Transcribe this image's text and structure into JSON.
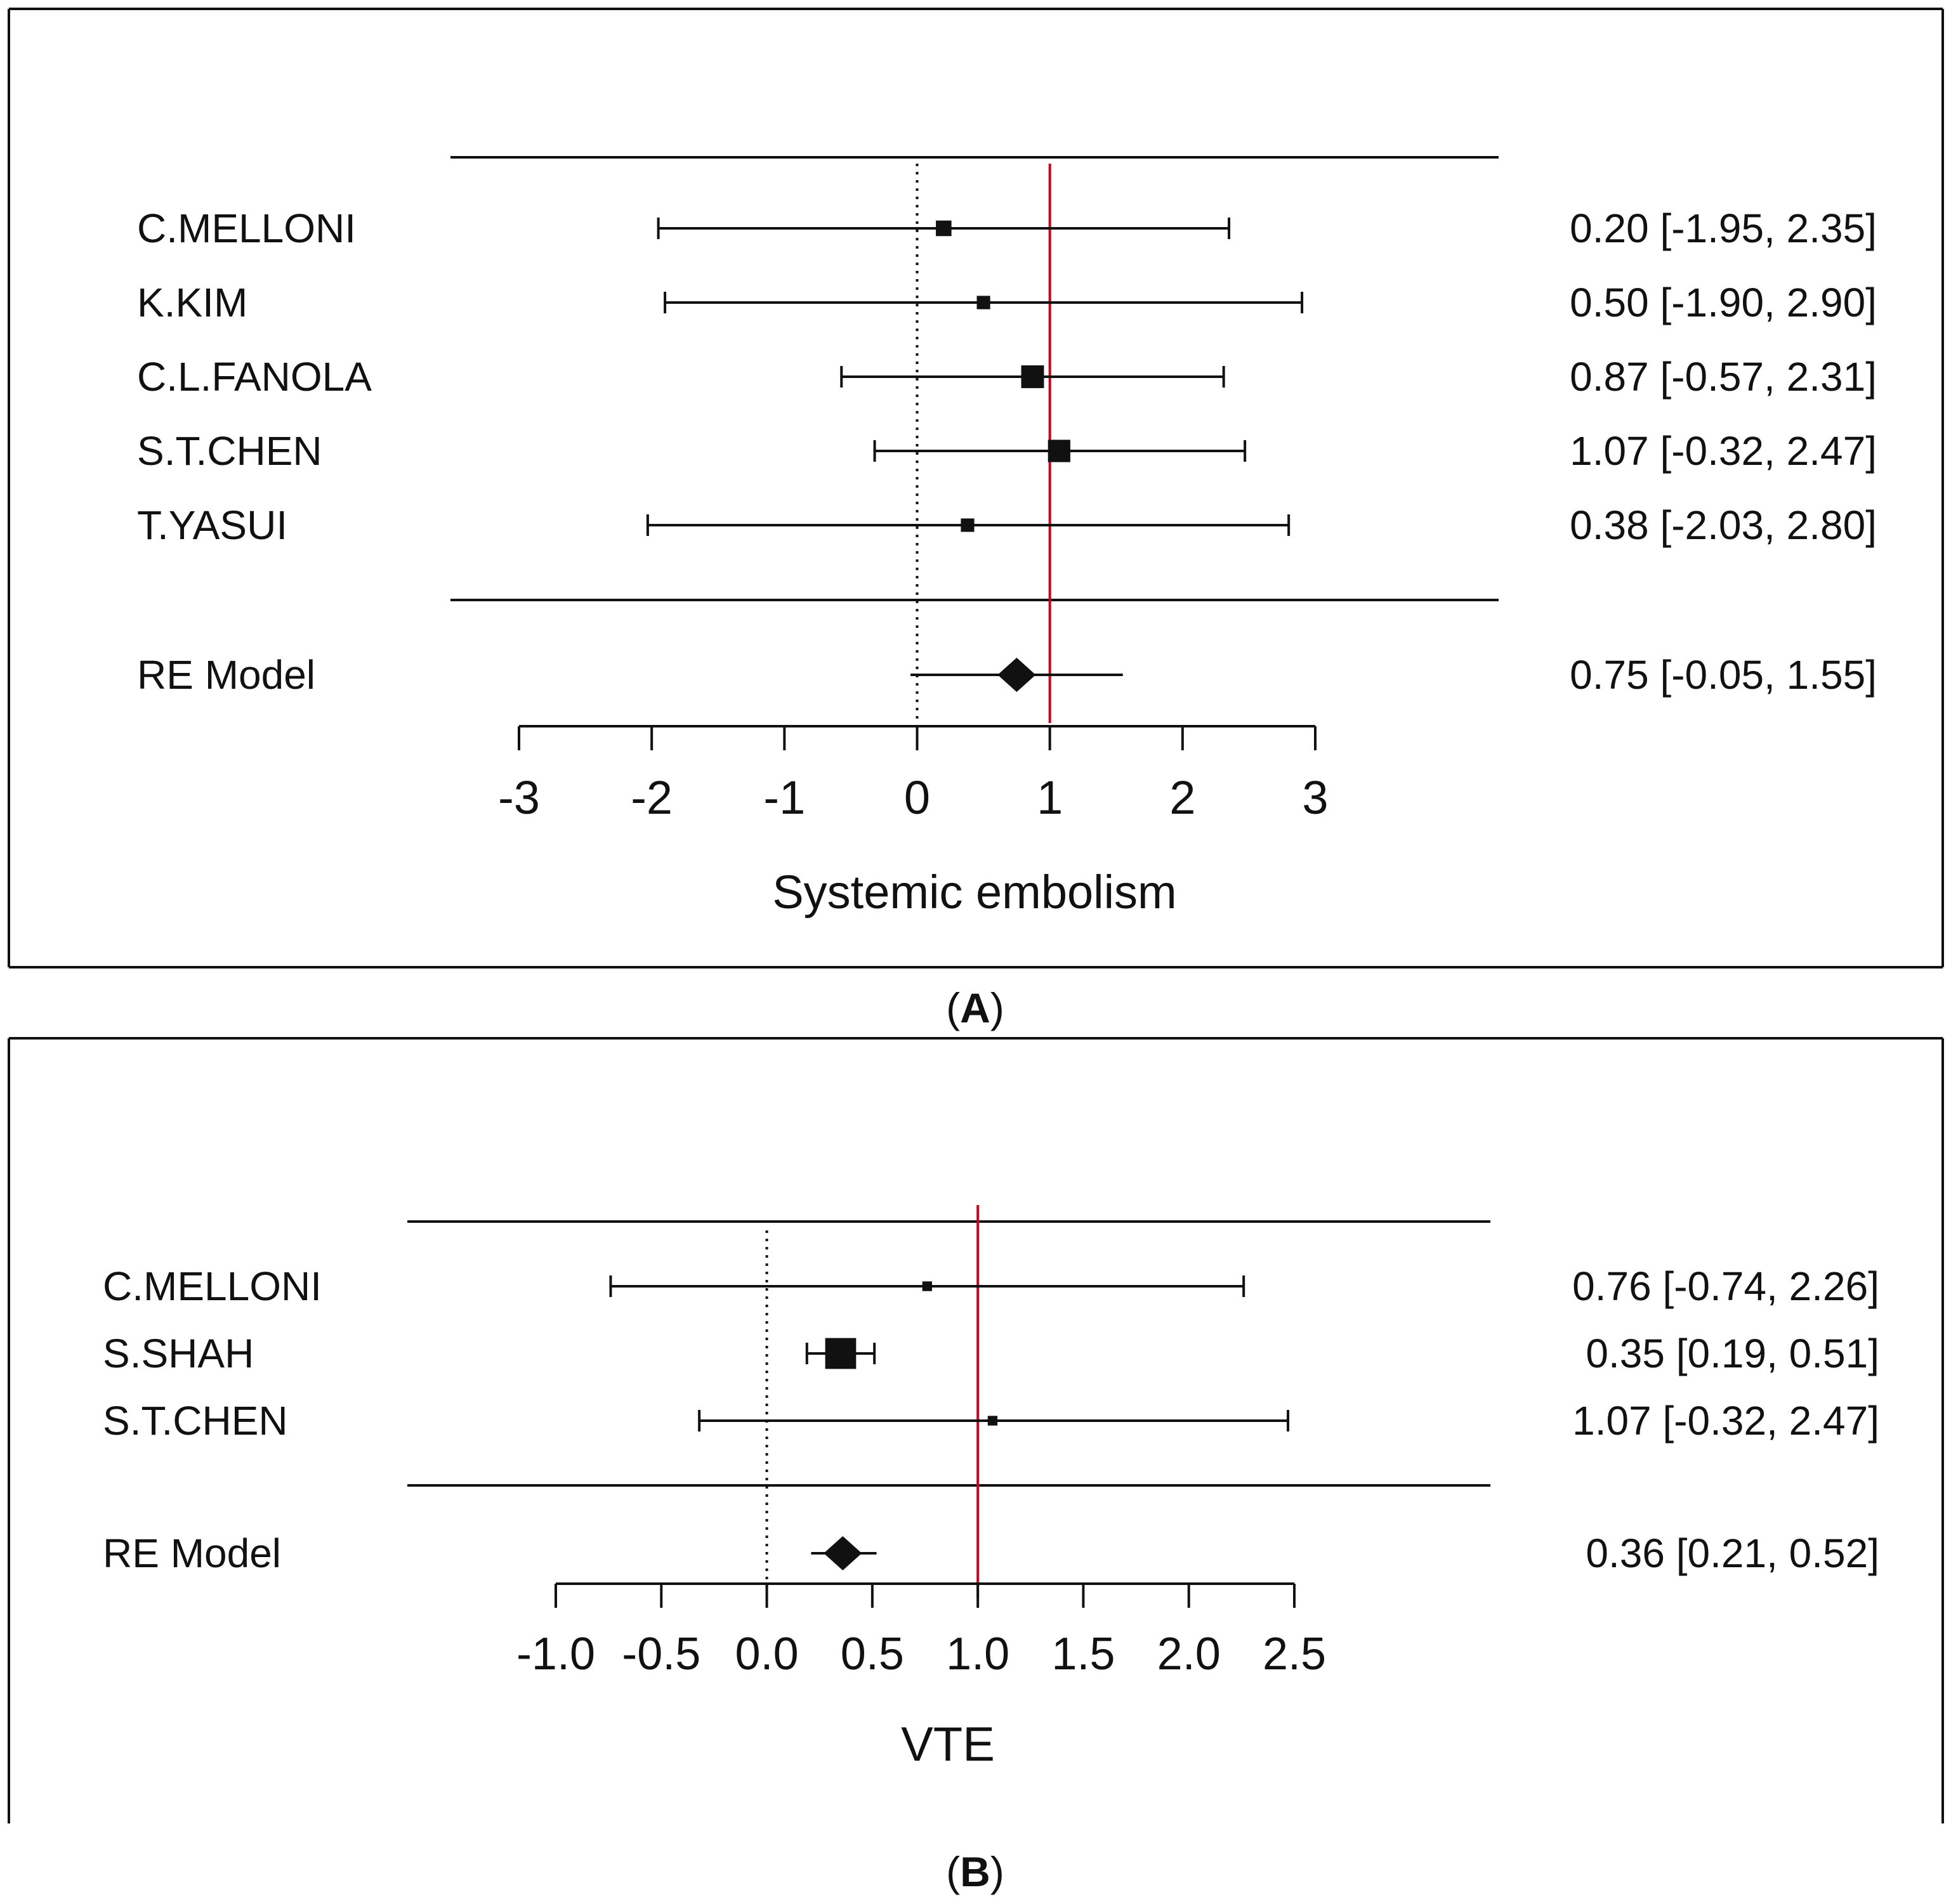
{
  "colors": {
    "ink": "#111111",
    "reference_line": "#d0021b",
    "frame": "#111111"
  },
  "chart_data": [
    {
      "type": "forest",
      "panel_label": "A",
      "xlabel": "Systemic embolism",
      "xlim": [
        -3,
        3
      ],
      "x_ticks": [
        -3,
        -2,
        -1,
        0,
        1,
        2,
        3
      ],
      "x_tick_labels": [
        "-3",
        "-2",
        "-1",
        "0",
        "1",
        "2",
        "3"
      ],
      "null_line": 0,
      "reference_line": 1,
      "studies": [
        {
          "name": "C.MELLONI",
          "estimate": 0.2,
          "lower": -1.95,
          "upper": 2.35,
          "weight": 0.12,
          "label": "0.20 [-1.95, 2.35]"
        },
        {
          "name": "K.KIM",
          "estimate": 0.5,
          "lower": -1.9,
          "upper": 2.9,
          "weight": 0.07,
          "label": "0.50 [-1.90, 2.90]"
        },
        {
          "name": "C.L.FANOLA",
          "estimate": 0.87,
          "lower": -0.57,
          "upper": 2.31,
          "weight": 0.38,
          "label": "0.87 [-0.57, 2.31]"
        },
        {
          "name": "S.T.CHEN",
          "estimate": 1.07,
          "lower": -0.32,
          "upper": 2.47,
          "weight": 0.36,
          "label": "1.07 [-0.32, 2.47]"
        },
        {
          "name": "T.YASUI",
          "estimate": 0.38,
          "lower": -2.03,
          "upper": 2.8,
          "weight": 0.07,
          "label": "0.38 [-2.03, 2.80]"
        }
      ],
      "summary": {
        "name": "RE Model",
        "estimate": 0.75,
        "lower": -0.05,
        "upper": 1.55,
        "label": "0.75 [-0.05, 1.55]"
      }
    },
    {
      "type": "forest",
      "panel_label": "B",
      "xlabel": "VTE",
      "xlim": [
        -1.0,
        2.5
      ],
      "x_ticks": [
        -1.0,
        -0.5,
        0.0,
        0.5,
        1.0,
        1.5,
        2.0,
        2.5
      ],
      "x_tick_labels": [
        "-1.0",
        "-0.5",
        "0.0",
        "0.5",
        "1.0",
        "1.5",
        "2.0",
        "2.5"
      ],
      "null_line": 0,
      "reference_line": 1,
      "studies": [
        {
          "name": "C.MELLONI",
          "estimate": 0.76,
          "lower": -0.74,
          "upper": 2.26,
          "weight": 0.03,
          "label": "0.76 [-0.74, 2.26]"
        },
        {
          "name": "S.SHAH",
          "estimate": 0.35,
          "lower": 0.19,
          "upper": 0.51,
          "weight": 0.94,
          "label": "0.35 [0.19, 0.51]"
        },
        {
          "name": "S.T.CHEN",
          "estimate": 1.07,
          "lower": -0.32,
          "upper": 2.47,
          "weight": 0.03,
          "label": "1.07 [-0.32, 2.47]"
        }
      ],
      "summary": {
        "name": "RE Model",
        "estimate": 0.36,
        "lower": 0.21,
        "upper": 0.52,
        "label": "0.36 [0.21, 0.52]"
      }
    }
  ]
}
